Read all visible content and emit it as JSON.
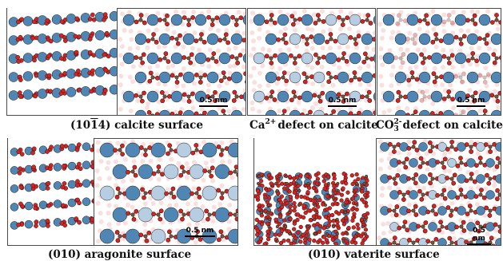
{
  "captions": {
    "calcite_pre": "(10",
    "calcite_bar": "1",
    "calcite_post": "4) calcite surface",
    "ca_pre": "Ca",
    "ca_sup": "2+",
    "ca_post": "defect on calcite",
    "co3_pre": "CO",
    "co3_sup": "2-",
    "co3_sub": "3",
    "co3_post": "defect on calcite",
    "aragonite": "(010) aragonite surface",
    "vaterite": "(010) vaterite surface"
  },
  "scale_bar_label": "0.5 nm",
  "colors": {
    "calcium": "#4f86b4",
    "calcium_faded": "#b7cde2",
    "oxygen": "#d9211f",
    "oxygen_faded": "#f1b8b5",
    "carbon": "#7a5236",
    "frame": "#4a4a4a"
  }
}
